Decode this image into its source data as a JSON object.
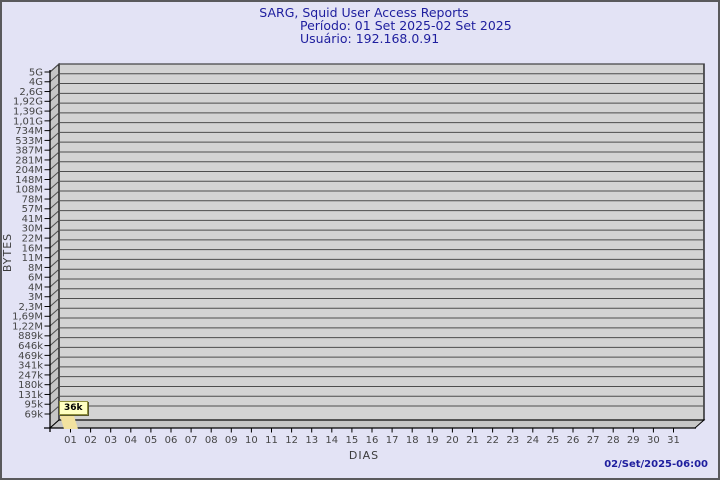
{
  "page": {
    "background": "#e3e3f5",
    "border_color": "#59595c"
  },
  "header": {
    "title": "SARG, Squid User Access Reports",
    "period_line": "Período: 01 Set 2025-02 Set 2025",
    "user_line": "Usuário: 192.168.0.91",
    "text_color": "#1e1e9e"
  },
  "footer": {
    "timestamp": "02/Set/2025-06:00"
  },
  "chart_data": {
    "type": "area",
    "title": "SARG, Squid User Access Reports",
    "subtitle": [
      "Período: 01 Set 2025-02 Set 2025",
      "Usuário: 192.168.0.91"
    ],
    "xlabel": "DIAS",
    "ylabel": "BYTES",
    "y_scale": "log",
    "y_range": [
      "69k",
      "5G"
    ],
    "grid": true,
    "style": "3d-walls",
    "y_tick_labels": [
      "5G",
      "4G",
      "2,6G",
      "1,92G",
      "1,39G",
      "1,01G",
      "734M",
      "533M",
      "387M",
      "281M",
      "204M",
      "148M",
      "108M",
      "78M",
      "57M",
      "41M",
      "30M",
      "22M",
      "16M",
      "11M",
      "8M",
      "6M",
      "4M",
      "3M",
      "2,3M",
      "1,69M",
      "1,22M",
      "889k",
      "646k",
      "469k",
      "341k",
      "247k",
      "180k",
      "131k",
      "95k",
      "69k"
    ],
    "x_tick_labels": [
      "01",
      "02",
      "03",
      "04",
      "05",
      "06",
      "07",
      "08",
      "09",
      "10",
      "11",
      "12",
      "13",
      "14",
      "15",
      "16",
      "17",
      "18",
      "19",
      "20",
      "21",
      "22",
      "23",
      "24",
      "25",
      "26",
      "27",
      "28",
      "29",
      "30",
      "31"
    ],
    "series": [
      {
        "name": "192.168.0.91",
        "points": [
          {
            "x": "01",
            "label": "36k",
            "value_bytes": 36000
          }
        ]
      }
    ],
    "annotation": {
      "label": "36k",
      "x": "01"
    },
    "colors": {
      "plot_bg": "#d3d3d3",
      "wall": "#c6c6c6",
      "gridline": "#4d4d4d",
      "axis": "#000000",
      "tick_text": "#454545",
      "flag_bg": "#ffffc2",
      "flag_border": "#8f8f3e",
      "flag_pointer": "#f2e2a0"
    }
  }
}
